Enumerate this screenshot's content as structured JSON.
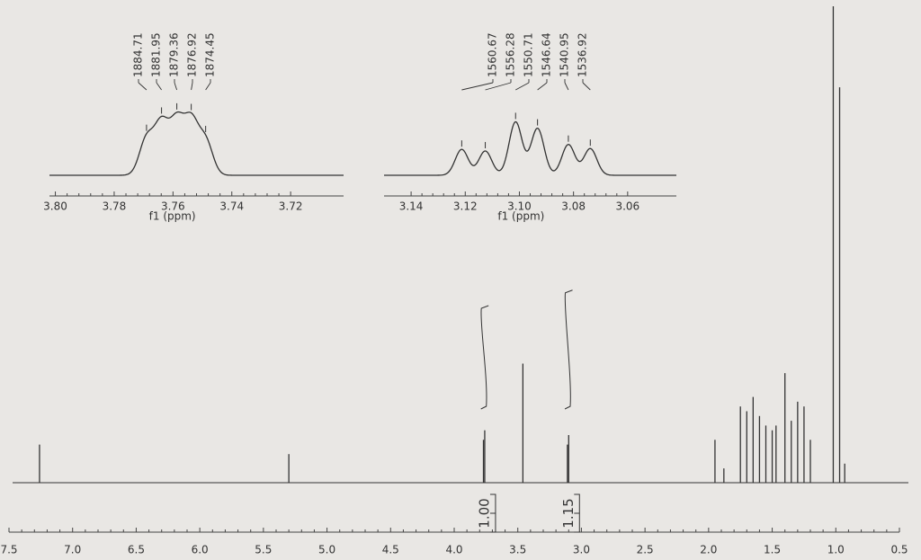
{
  "chart_data": [
    {
      "type": "spectrum",
      "x": [
        7.26,
        5.3,
        3.77,
        3.76,
        3.46,
        3.11,
        3.1,
        1.95,
        1.88,
        1.75,
        1.7,
        1.65,
        1.6,
        1.55,
        1.5,
        1.47,
        1.4,
        1.35,
        1.3,
        1.25,
        1.2,
        1.02,
        0.97,
        0.93
      ],
      "values": [
        0.08,
        0.06,
        0.09,
        0.11,
        0.25,
        0.08,
        0.1,
        0.09,
        0.03,
        0.16,
        0.15,
        0.18,
        0.14,
        0.12,
        0.11,
        0.12,
        0.23,
        0.13,
        0.17,
        0.16,
        0.09,
        1.0,
        0.83,
        0.04
      ],
      "integrals": [
        {
          "from": 3.79,
          "to": 3.73,
          "value": 1.0,
          "label": "1.00"
        },
        {
          "from": 3.13,
          "to": 3.07,
          "value": 1.15,
          "label": "1.15"
        }
      ],
      "xlim": [
        7.5,
        0.5
      ],
      "xticks": [
        {
          "value": 7.5,
          "label": "7.5"
        },
        {
          "value": 7,
          "label": "7.0"
        },
        6.5,
        {
          "value": 6,
          "label": "6.0"
        },
        5.5,
        {
          "value": 5,
          "label": "5.0"
        },
        4.5,
        {
          "value": 4,
          "label": "4.0"
        },
        3.5,
        {
          "value": 3,
          "label": "3.0"
        },
        2.5,
        {
          "value": 2,
          "label": "2.0"
        },
        1.5,
        {
          "value": 1,
          "label": "1.0"
        },
        0.5
      ],
      "color": "#333333"
    },
    {
      "type": "inset",
      "x": [
        3.769,
        3.7639,
        3.7587,
        3.7538,
        3.7489
      ],
      "values": [
        0.45,
        0.62,
        0.64,
        0.64,
        0.42
      ],
      "hz": [
        1884.71,
        1881.95,
        1879.36,
        1876.92,
        1874.45
      ],
      "xlabel": "f1 (ppm)",
      "xlim": [
        3.802,
        3.702
      ],
      "xticks": [
        {
          "value": 3.8,
          "label": "3.80"
        },
        3.78,
        3.76,
        3.74,
        3.72
      ],
      "color": "#333333"
    },
    {
      "type": "inset",
      "x": [
        3.1213,
        3.1126,
        3.1014,
        3.0933,
        3.0819,
        3.0738
      ],
      "values": [
        0.32,
        0.3,
        0.66,
        0.58,
        0.38,
        0.33
      ],
      "hz": [
        1560.67,
        1556.28,
        1550.71,
        1546.64,
        1540.95,
        1536.92
      ],
      "xlabel": "f1 (ppm)",
      "xlim": [
        3.15,
        3.042
      ],
      "xticks": [
        3.14,
        3.12,
        {
          "value": 3.1,
          "label": "3.10"
        },
        3.08,
        3.06
      ],
      "color": "#333333"
    }
  ]
}
